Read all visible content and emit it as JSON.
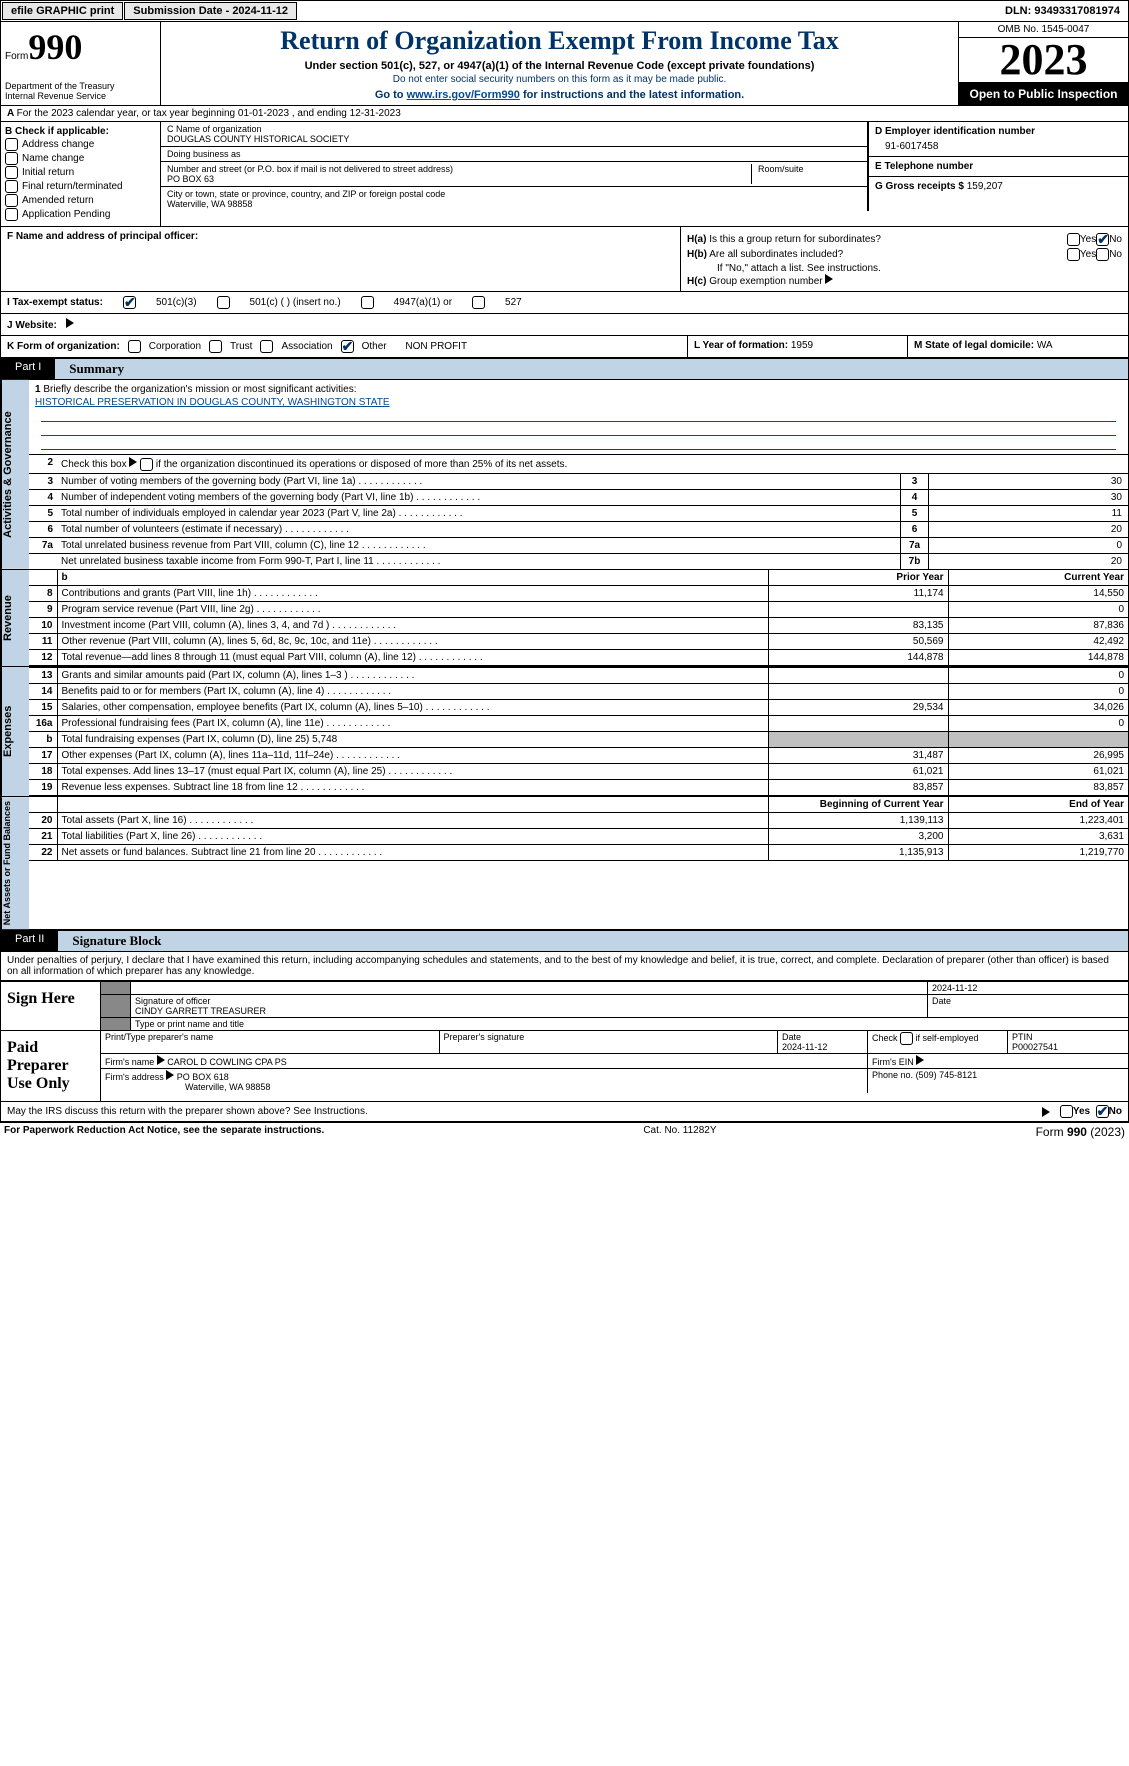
{
  "top": {
    "efile": "efile GRAPHIC print",
    "submission": "Submission Date - 2024-11-12",
    "dln": "DLN: 93493317081974"
  },
  "header": {
    "form_label": "Form",
    "form_num": "990",
    "dept": "Department of the Treasury\nInternal Revenue Service",
    "title": "Return of Organization Exempt From Income Tax",
    "subtitle": "Under section 501(c), 527, or 4947(a)(1) of the Internal Revenue Code (except private foundations)",
    "note1": "Do not enter social security numbers on this form as it may be made public.",
    "note2": "Go to ",
    "note2_link": "www.irs.gov/Form990",
    "note2_suffix": " for instructions and the latest information.",
    "omb": "OMB No. 1545-0047",
    "year": "2023",
    "open": "Open to Public Inspection"
  },
  "row_a": "For the 2023 calendar year, or tax year beginning 01-01-2023    , and ending 12-31-2023",
  "box_b": {
    "label": "B Check if applicable:",
    "items": [
      "Address change",
      "Name change",
      "Initial return",
      "Final return/terminated",
      "Amended return",
      "Application Pending"
    ]
  },
  "box_c": {
    "name_label": "C Name of organization",
    "name": "DOUGLAS COUNTY HISTORICAL SOCIETY",
    "dba_label": "Doing business as",
    "addr_label": "Number and street (or P.O. box if mail is not delivered to street address)",
    "addr": "PO BOX 63",
    "room_label": "Room/suite",
    "city_label": "City or town, state or province, country, and ZIP or foreign postal code",
    "city": "Waterville, WA   98858"
  },
  "box_d": {
    "label": "D Employer identification number",
    "value": "91-6017458"
  },
  "box_e": {
    "label": "E Telephone number"
  },
  "box_g": {
    "label": "G Gross receipts $",
    "value": "159,207"
  },
  "box_f": {
    "label": "F  Name and address of principal officer:"
  },
  "box_h": {
    "a_label": "H(a)  Is this a group return for subordinates?",
    "b_label": "H(b)  Are all subordinates included?",
    "note": "If \"No,\" attach a list. See instructions.",
    "c_label": "H(c)  Group exemption number ",
    "yes": "Yes",
    "no": "No"
  },
  "box_i": {
    "label": "I   Tax-exempt status:",
    "opts": [
      "501(c)(3)",
      "501(c) (  ) (insert no.)",
      "4947(a)(1) or",
      "527"
    ]
  },
  "box_j": {
    "label": "J   Website: "
  },
  "box_k": {
    "label": "K Form of organization:",
    "opts": [
      "Corporation",
      "Trust",
      "Association",
      "Other"
    ],
    "other_val": "NON PROFIT"
  },
  "box_l": {
    "label": "L Year of formation:",
    "value": "1959"
  },
  "box_m": {
    "label": "M State of legal domicile:",
    "value": "WA"
  },
  "part1": {
    "label": "Part I",
    "title": "Summary"
  },
  "summary": {
    "tab1": "Activities & Governance",
    "tab2": "Revenue",
    "tab3": "Expenses",
    "tab4": "Net Assets or Fund Balances",
    "line1": "Briefly describe the organization's mission or most significant activities:",
    "mission": "HISTORICAL PRESERVATION IN DOUGLAS COUNTY, WASHINGTON STATE",
    "line2": "Check this box         if the organization discontinued its operations or disposed of more than 25% of its net assets.",
    "governance_rows": [
      {
        "n": "3",
        "d": "Number of voting members of the governing body (Part VI, line 1a)",
        "box": "3",
        "v": "30"
      },
      {
        "n": "4",
        "d": "Number of independent voting members of the governing body (Part VI, line 1b)",
        "box": "4",
        "v": "30"
      },
      {
        "n": "5",
        "d": "Total number of individuals employed in calendar year 2023 (Part V, line 2a)",
        "box": "5",
        "v": "11"
      },
      {
        "n": "6",
        "d": "Total number of volunteers (estimate if necessary)",
        "box": "6",
        "v": "20"
      },
      {
        "n": "7a",
        "d": "Total unrelated business revenue from Part VIII, column (C), line 12",
        "box": "7a",
        "v": "0"
      },
      {
        "n": "",
        "d": "Net unrelated business taxable income from Form 990-T, Part I, line 11",
        "box": "7b",
        "v": "20"
      }
    ],
    "col_prior": "Prior Year",
    "col_current": "Current Year",
    "col_begin": "Beginning of Current Year",
    "col_end": "End of Year",
    "revenue_rows": [
      {
        "n": "8",
        "d": "Contributions and grants (Part VIII, line 1h)",
        "p": "11,174",
        "c": "14,550"
      },
      {
        "n": "9",
        "d": "Program service revenue (Part VIII, line 2g)",
        "p": "",
        "c": "0"
      },
      {
        "n": "10",
        "d": "Investment income (Part VIII, column (A), lines 3, 4, and 7d )",
        "p": "83,135",
        "c": "87,836"
      },
      {
        "n": "11",
        "d": "Other revenue (Part VIII, column (A), lines 5, 6d, 8c, 9c, 10c, and 11e)",
        "p": "50,569",
        "c": "42,492"
      },
      {
        "n": "12",
        "d": "Total revenue—add lines 8 through 11 (must equal Part VIII, column (A), line 12)",
        "p": "144,878",
        "c": "144,878"
      }
    ],
    "expense_rows": [
      {
        "n": "13",
        "d": "Grants and similar amounts paid (Part IX, column (A), lines 1–3 )",
        "p": "",
        "c": "0"
      },
      {
        "n": "14",
        "d": "Benefits paid to or for members (Part IX, column (A), line 4)",
        "p": "",
        "c": "0"
      },
      {
        "n": "15",
        "d": "Salaries, other compensation, employee benefits (Part IX, column (A), lines 5–10)",
        "p": "29,534",
        "c": "34,026"
      },
      {
        "n": "16a",
        "d": "Professional fundraising fees (Part IX, column (A), line 11e)",
        "p": "",
        "c": "0"
      },
      {
        "n": "b",
        "d": "Total fundraising expenses (Part IX, column (D), line 25) 5,748",
        "p": "GRAY",
        "c": "GRAY"
      },
      {
        "n": "17",
        "d": "Other expenses (Part IX, column (A), lines 11a–11d, 11f–24e)",
        "p": "31,487",
        "c": "26,995"
      },
      {
        "n": "18",
        "d": "Total expenses. Add lines 13–17 (must equal Part IX, column (A), line 25)",
        "p": "61,021",
        "c": "61,021"
      },
      {
        "n": "19",
        "d": "Revenue less expenses. Subtract line 18 from line 12",
        "p": "83,857",
        "c": "83,857"
      }
    ],
    "balance_rows": [
      {
        "n": "20",
        "d": "Total assets (Part X, line 16)",
        "p": "1,139,113",
        "c": "1,223,401"
      },
      {
        "n": "21",
        "d": "Total liabilities (Part X, line 26)",
        "p": "3,200",
        "c": "3,631"
      },
      {
        "n": "22",
        "d": "Net assets or fund balances. Subtract line 21 from line 20",
        "p": "1,135,913",
        "c": "1,219,770"
      }
    ]
  },
  "part2": {
    "label": "Part II",
    "title": "Signature Block"
  },
  "declaration": "Under penalties of perjury, I declare that I have examined this return, including accompanying schedules and statements, and to the best of my knowledge and belief, it is true, correct, and complete. Declaration of preparer (other than officer) is based on all information of which preparer has any knowledge.",
  "sign": {
    "label": "Sign Here",
    "sig_date": "2024-11-12",
    "sig_officer_label": "Signature of officer",
    "officer": "CINDY GARRETT TREASURER",
    "name_label": "Type or print name and title",
    "date_label": "Date"
  },
  "preparer": {
    "label": "Paid Preparer Use Only",
    "print_label": "Print/Type preparer's name",
    "sig_label": "Preparer's signature",
    "date_label": "Date",
    "date": "2024-11-12",
    "check_label": "Check           if self-employed",
    "ptin_label": "PTIN",
    "ptin": "P00027541",
    "firm_name_label": "Firm's name   ",
    "firm_name": "CAROL D COWLING CPA PS",
    "firm_ein_label": "Firm's EIN ",
    "firm_addr_label": "Firm's address ",
    "firm_addr1": "PO BOX 618",
    "firm_addr2": "Waterville, WA   98858",
    "phone_label": "Phone no.",
    "phone": "(509) 745-8121"
  },
  "discuss": "May the IRS discuss this return with the preparer shown above? See Instructions.",
  "footer": {
    "left": "For Paperwork Reduction Act Notice, see the separate instructions.",
    "mid": "Cat. No. 11282Y",
    "right_label": "Form ",
    "right_num": "990",
    "right_year": " (2023)"
  }
}
